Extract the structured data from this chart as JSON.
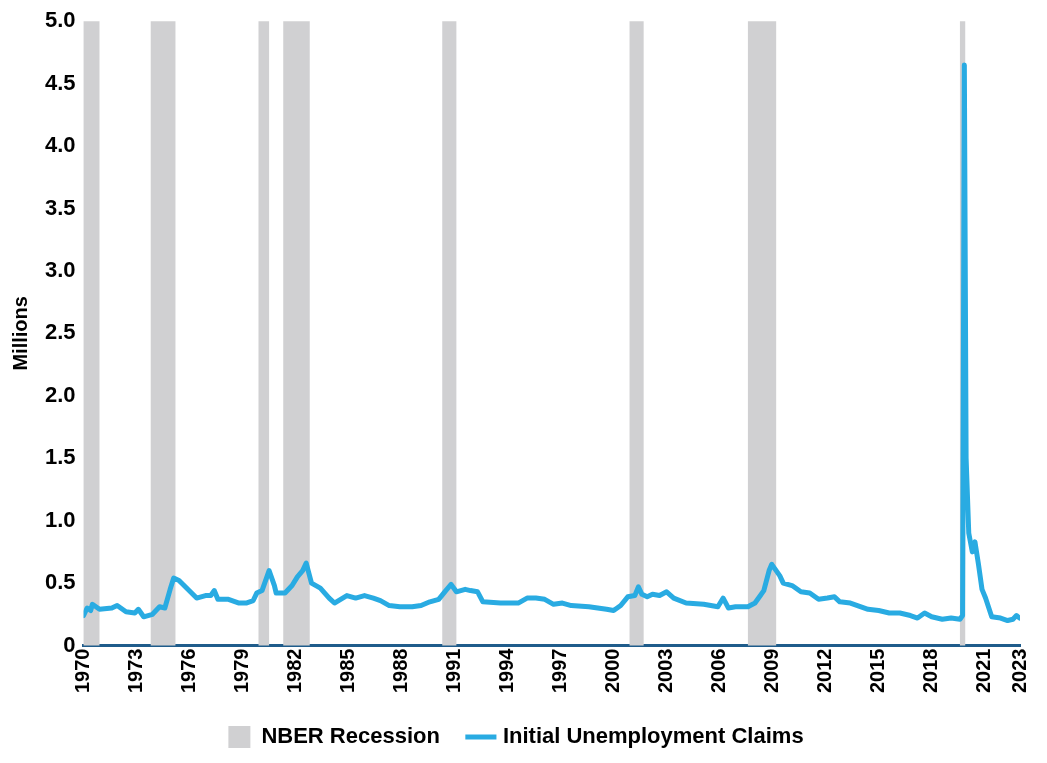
{
  "chart_data": {
    "type": "line",
    "ylabel": "Millions",
    "xlim": [
      1970,
      2023
    ],
    "xticks": [
      1970,
      1973,
      1976,
      1979,
      1982,
      1985,
      1988,
      1991,
      1994,
      1997,
      2000,
      2003,
      2006,
      2009,
      2012,
      2015,
      2018,
      2021,
      2023
    ],
    "ylim": [
      0,
      5
    ],
    "yticks": [
      0,
      0.5,
      {
        "value": 1,
        "label": "1.0"
      },
      1.5,
      {
        "value": 2,
        "label": "2.0"
      },
      2.5,
      {
        "value": 3,
        "label": "3.0"
      },
      3.5,
      {
        "value": 4,
        "label": "4.0"
      },
      4.5,
      {
        "value": 5,
        "label": "5.0"
      }
    ],
    "grid": false,
    "legend": "bottom",
    "marker": "none",
    "line_style": "solid",
    "bands": [
      {
        "axis": "x",
        "from": 1970,
        "to": 1970.9,
        "label": "NBER Recession",
        "color": "#d0d0d2"
      },
      {
        "axis": "x",
        "from": 1973.8,
        "to": 1975.2,
        "color": "#d0d0d2"
      },
      {
        "axis": "x",
        "from": 1979.9,
        "to": 1980.5,
        "color": "#d0d0d2"
      },
      {
        "axis": "x",
        "from": 1981.3,
        "to": 1982.8,
        "color": "#d0d0d2"
      },
      {
        "axis": "x",
        "from": 1990.3,
        "to": 1991.1,
        "color": "#d0d0d2"
      },
      {
        "axis": "x",
        "from": 2000.9,
        "to": 2001.7,
        "color": "#d0d0d2"
      },
      {
        "axis": "x",
        "from": 2007.6,
        "to": 2009.2,
        "color": "#d0d0d2"
      },
      {
        "axis": "x",
        "from": 2019.6,
        "to": 2019.9,
        "color": "#d0d0d2"
      }
    ],
    "series": [
      {
        "name": "Initial Unemployment Claims",
        "color": "#29abe2",
        "x": [
          1970,
          1970.2,
          1970.4,
          1970.5,
          1970.9,
          1971.6,
          1971.9,
          1972.4,
          1972.9,
          1973.1,
          1973.4,
          1973.9,
          1974.3,
          1974.6,
          1974.9,
          1975.1,
          1975.4,
          1975.9,
          1976.4,
          1976.9,
          1977.2,
          1977.4,
          1977.6,
          1978.2,
          1978.8,
          1979.2,
          1979.6,
          1979.8,
          1980.1,
          1980.5,
          1980.8,
          1980.9,
          1981.4,
          1981.8,
          1982.1,
          1982.4,
          1982.6,
          1982.9,
          1983.4,
          1983.9,
          1984.2,
          1984.9,
          1985.4,
          1985.9,
          1986.4,
          1986.8,
          1987.3,
          1987.9,
          1988.6,
          1989.1,
          1989.6,
          1990.1,
          1990.5,
          1990.8,
          1991.1,
          1991.6,
          1991.9,
          1992.3,
          1992.6,
          1993.6,
          1994.1,
          1994.6,
          1995.1,
          1995.6,
          1996.1,
          1996.6,
          1997.1,
          1997.6,
          1998.6,
          1999.1,
          1999.6,
          2000,
          2000.4,
          2000.8,
          2001.2,
          2001.4,
          2001.6,
          2001.9,
          2002.2,
          2002.6,
          2003,
          2003.4,
          2004.1,
          2005.1,
          2005.9,
          2006.2,
          2006.5,
          2006.9,
          2007.6,
          2008,
          2008.5,
          2008.8,
          2008.95,
          2009.4,
          2009.6,
          2010.1,
          2010.6,
          2011.1,
          2011.6,
          2012.1,
          2012.5,
          2012.8,
          2013.4,
          2013.8,
          2014.4,
          2015,
          2015.6,
          2016.2,
          2016.8,
          2017.2,
          2017.6,
          2018,
          2018.6,
          2019.1,
          2019.6,
          2019.75,
          2019.85,
          2019.95,
          2020.1,
          2020.3,
          2020.45,
          2020.65,
          2020.85,
          2021.05,
          2021.4,
          2021.9,
          2022.3,
          2022.6,
          2022.8,
          2022.98
        ],
        "values": [
          0.24,
          0.3,
          0.28,
          0.33,
          0.29,
          0.3,
          0.32,
          0.27,
          0.26,
          0.29,
          0.23,
          0.25,
          0.31,
          0.3,
          0.45,
          0.54,
          0.52,
          0.45,
          0.38,
          0.4,
          0.4,
          0.44,
          0.37,
          0.37,
          0.34,
          0.34,
          0.36,
          0.42,
          0.44,
          0.6,
          0.48,
          0.42,
          0.42,
          0.48,
          0.55,
          0.6,
          0.66,
          0.5,
          0.46,
          0.38,
          0.34,
          0.4,
          0.38,
          0.4,
          0.38,
          0.36,
          0.32,
          0.31,
          0.31,
          0.32,
          0.35,
          0.37,
          0.44,
          0.49,
          0.43,
          0.45,
          0.44,
          0.43,
          0.35,
          0.34,
          0.34,
          0.34,
          0.38,
          0.38,
          0.37,
          0.33,
          0.34,
          0.32,
          0.31,
          0.3,
          0.29,
          0.28,
          0.32,
          0.39,
          0.4,
          0.47,
          0.41,
          0.39,
          0.41,
          0.4,
          0.43,
          0.38,
          0.34,
          0.33,
          0.31,
          0.38,
          0.3,
          0.31,
          0.31,
          0.34,
          0.44,
          0.6,
          0.65,
          0.56,
          0.5,
          0.48,
          0.43,
          0.42,
          0.37,
          0.38,
          0.39,
          0.35,
          0.34,
          0.32,
          0.29,
          0.28,
          0.26,
          0.26,
          0.24,
          0.22,
          0.26,
          0.23,
          0.21,
          0.22,
          0.21,
          0.24,
          4.65,
          1.5,
          0.9,
          0.75,
          0.83,
          0.65,
          0.45,
          0.38,
          0.23,
          0.22,
          0.2,
          0.21,
          0.24,
          0.22
        ]
      }
    ]
  }
}
